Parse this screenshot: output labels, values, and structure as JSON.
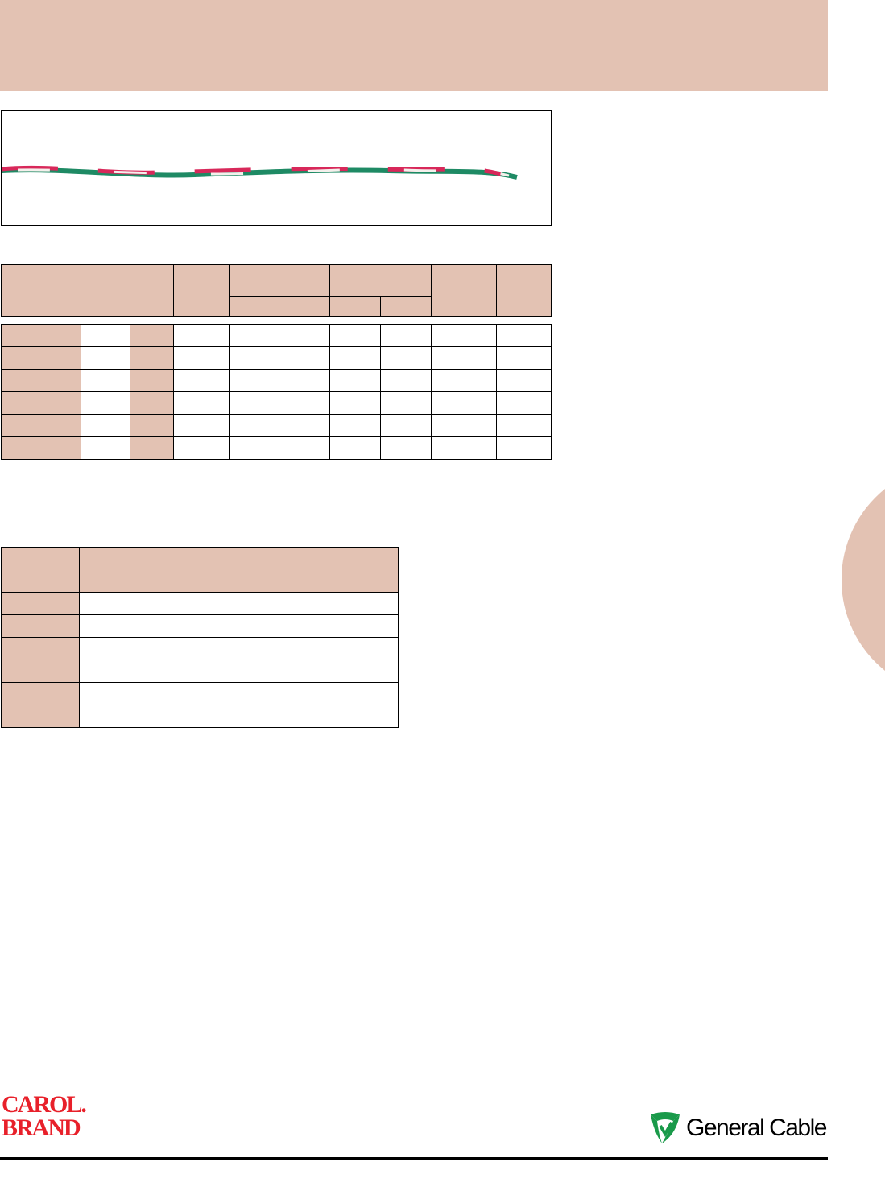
{
  "colors": {
    "accent": "#e3c2b3",
    "carol_red": "#e8202a",
    "gc_green": "#1a9a4a"
  },
  "header_band": {
    "color": "#e3c2b3"
  },
  "product_image": {
    "description_icon": "twisted-wire-image"
  },
  "spec_table": {
    "header_columns": 10,
    "sub_header_cells": 4,
    "body_rows": 6
  },
  "second_table": {
    "columns": 2,
    "body_rows": 6
  },
  "footer": {
    "left_logo": {
      "line1": "CAROL.",
      "line2": "BRAND"
    },
    "right_logo": {
      "text": "General Cable",
      "icon": "general-cable-shield-icon"
    }
  }
}
